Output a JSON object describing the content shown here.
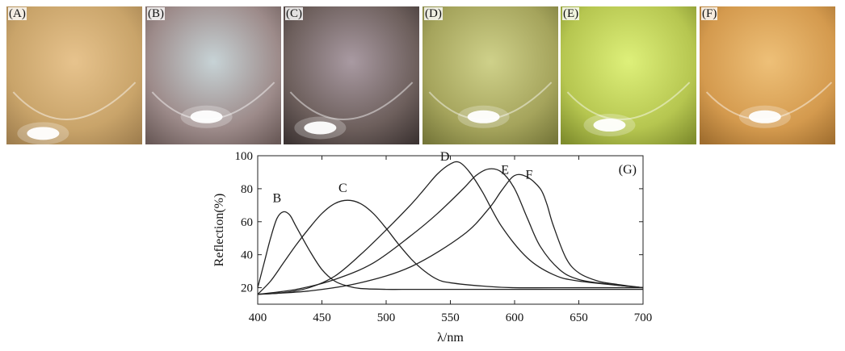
{
  "panels": [
    {
      "label": "(A)",
      "colors": {
        "base": "#c9a46a",
        "tone": "#e7c38d",
        "dark": "#a07f4f"
      }
    },
    {
      "label": "(B)",
      "colors": {
        "base": "#9d8b8a",
        "tone": "#c7d3d6",
        "dark": "#6a5a58"
      }
    },
    {
      "label": "(C)",
      "colors": {
        "base": "#6d5f5c",
        "tone": "#a99aa2",
        "dark": "#3d3433"
      }
    },
    {
      "label": "(D)",
      "colors": {
        "base": "#a5a45c",
        "tone": "#cfd18a",
        "dark": "#76773a"
      }
    },
    {
      "label": "(E)",
      "colors": {
        "base": "#b6c650",
        "tone": "#def07a",
        "dark": "#7f8d2d"
      }
    },
    {
      "label": "(F)",
      "colors": {
        "base": "#d49a4e",
        "tone": "#eec078",
        "dark": "#a06e2f"
      }
    }
  ],
  "chart_data": {
    "type": "line",
    "panel_label": "(G)",
    "xlabel": "λ/nm",
    "ylabel": "Reflection(%)",
    "xlim": [
      400,
      700
    ],
    "ylim": [
      10,
      100
    ],
    "xticks": [
      "400",
      "450",
      "500",
      "550",
      "600",
      "650",
      "700"
    ],
    "yticks": [
      "20",
      "40",
      "60",
      "80",
      "100"
    ],
    "grid": false,
    "series": [
      {
        "name": "B",
        "x": [
          400,
          405,
          410,
          415,
          420,
          425,
          430,
          440,
          450,
          460,
          470,
          480,
          500,
          520,
          550,
          600,
          650,
          700
        ],
        "y": [
          20,
          35,
          50,
          62,
          66,
          64,
          57,
          43,
          31,
          24,
          21,
          19.5,
          19,
          19,
          19,
          19,
          19,
          19
        ]
      },
      {
        "name": "C",
        "x": [
          400,
          410,
          420,
          430,
          440,
          450,
          460,
          470,
          480,
          490,
          500,
          510,
          520,
          530,
          540,
          550,
          575,
          600,
          650,
          700
        ],
        "y": [
          16,
          24,
          35,
          46,
          56,
          65,
          71,
          73,
          71,
          65,
          56,
          46,
          37,
          30,
          25,
          23,
          21,
          20,
          20,
          20
        ]
      },
      {
        "name": "D",
        "x": [
          400,
          420,
          440,
          460,
          480,
          500,
          520,
          530,
          540,
          550,
          557,
          565,
          575,
          590,
          610,
          630,
          650,
          700
        ],
        "y": [
          16,
          17,
          20,
          27,
          40,
          55,
          71,
          80,
          89,
          95,
          96,
          90,
          78,
          57,
          38,
          28,
          24,
          20
        ]
      },
      {
        "name": "E",
        "x": [
          400,
          430,
          460,
          490,
          520,
          540,
          560,
          570,
          580,
          590,
          600,
          610,
          620,
          635,
          650,
          675,
          700
        ],
        "y": [
          16,
          19,
          25,
          35,
          52,
          65,
          80,
          88,
          92,
          90,
          80,
          62,
          45,
          31,
          25,
          22,
          20
        ]
      },
      {
        "name": "F",
        "x": [
          400,
          440,
          480,
          520,
          560,
          580,
          590,
          600,
          610,
          620,
          625,
          630,
          640,
          650,
          665,
          680,
          700
        ],
        "y": [
          16,
          18,
          23,
          33,
          52,
          68,
          79,
          88,
          87,
          80,
          71,
          58,
          38,
          29,
          24,
          22,
          20
        ]
      }
    ]
  }
}
